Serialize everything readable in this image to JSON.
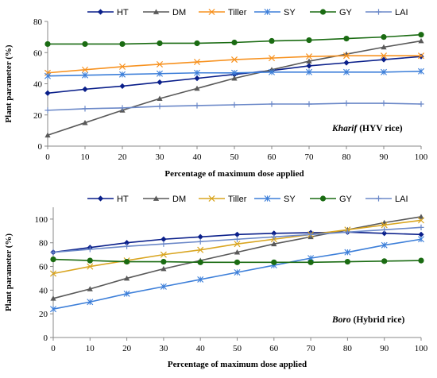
{
  "chart_data": [
    {
      "type": "line",
      "x": [
        0,
        10,
        20,
        30,
        40,
        50,
        60,
        70,
        80,
        90,
        100
      ],
      "xlabel": "Percentage  of maximum dose applied",
      "ylabel": "Plant parameter (%)",
      "ylim": [
        0,
        80
      ],
      "yticks": [
        0,
        20,
        40,
        60,
        80
      ],
      "xlim": [
        0,
        100
      ],
      "xticks": [
        0,
        10,
        20,
        30,
        40,
        50,
        60,
        70,
        80,
        90,
        100
      ],
      "grid": false,
      "legend_position": "top",
      "annotation_italic": "Kharif",
      "annotation_rest": "(HYV rice)",
      "series": [
        {
          "name": "HT",
          "color": "#0a1f8a",
          "marker": "diamond",
          "values": [
            34,
            36.5,
            38.5,
            41,
            43.5,
            46,
            48.5,
            51.5,
            53.5,
            55.5,
            57.5
          ]
        },
        {
          "name": "DM",
          "color": "#595959",
          "marker": "triangle",
          "values": [
            7,
            15,
            23,
            30.5,
            37,
            43.5,
            49,
            54.5,
            59,
            63.5,
            67.5
          ]
        },
        {
          "name": "Tiller",
          "color": "#f79220",
          "marker": "x",
          "values": [
            47,
            49,
            51,
            52.5,
            54,
            55.5,
            56.5,
            57.5,
            58,
            58,
            58
          ]
        },
        {
          "name": "SY",
          "color": "#3d7fd9",
          "marker": "star",
          "values": [
            45,
            45.5,
            46,
            46.5,
            47,
            47,
            47.5,
            47.5,
            47.5,
            47.5,
            48
          ]
        },
        {
          "name": "GY",
          "color": "#1a6b12",
          "marker": "circle",
          "values": [
            65.5,
            65.5,
            65.5,
            66,
            66,
            66.5,
            67.5,
            68,
            69,
            70,
            71.5
          ]
        },
        {
          "name": "LAI",
          "color": "#6b88c8",
          "marker": "plus",
          "values": [
            23,
            24,
            24.5,
            25.5,
            26,
            26.5,
            27,
            27,
            27.5,
            27.5,
            27
          ]
        }
      ]
    },
    {
      "type": "line",
      "x": [
        0,
        10,
        20,
        30,
        40,
        50,
        60,
        70,
        80,
        90,
        100
      ],
      "xlabel": "Percentage  of maximum dose applied",
      "ylabel": "Plant parameter (%)",
      "ylim": [
        0,
        110
      ],
      "yticks": [
        0,
        20,
        40,
        60,
        80,
        100
      ],
      "xlim": [
        0,
        100
      ],
      "xticks": [
        0,
        10,
        20,
        30,
        40,
        50,
        60,
        70,
        80,
        90,
        100
      ],
      "grid": false,
      "legend_position": "top",
      "annotation_italic": "Boro",
      "annotation_rest": "(Hybrid rice)",
      "series": [
        {
          "name": "HT",
          "color": "#0a1f8a",
          "marker": "diamond",
          "values": [
            72,
            76,
            80,
            83,
            85,
            87,
            88,
            88.5,
            89,
            88,
            87
          ]
        },
        {
          "name": "DM",
          "color": "#595959",
          "marker": "triangle",
          "values": [
            33,
            41,
            50,
            58,
            65,
            72,
            79,
            85,
            91,
            97,
            102
          ]
        },
        {
          "name": "Tiller",
          "color": "#d9a520",
          "marker": "x",
          "values": [
            54,
            60,
            65,
            70,
            74,
            79,
            83,
            87,
            91,
            95,
            99
          ]
        },
        {
          "name": "SY",
          "color": "#3d7fd9",
          "marker": "star",
          "values": [
            24,
            30,
            37,
            43,
            49,
            55,
            61,
            67,
            72,
            78,
            83
          ]
        },
        {
          "name": "GY",
          "color": "#1a6b12",
          "marker": "circle",
          "values": [
            66,
            65,
            64,
            64,
            63.5,
            63.5,
            63.5,
            63.5,
            64,
            64.5,
            65
          ]
        },
        {
          "name": "LAI",
          "color": "#6b88c8",
          "marker": "plus",
          "values": [
            72,
            74.5,
            77,
            79,
            81,
            83,
            85,
            87,
            89,
            91,
            93
          ]
        }
      ]
    }
  ]
}
